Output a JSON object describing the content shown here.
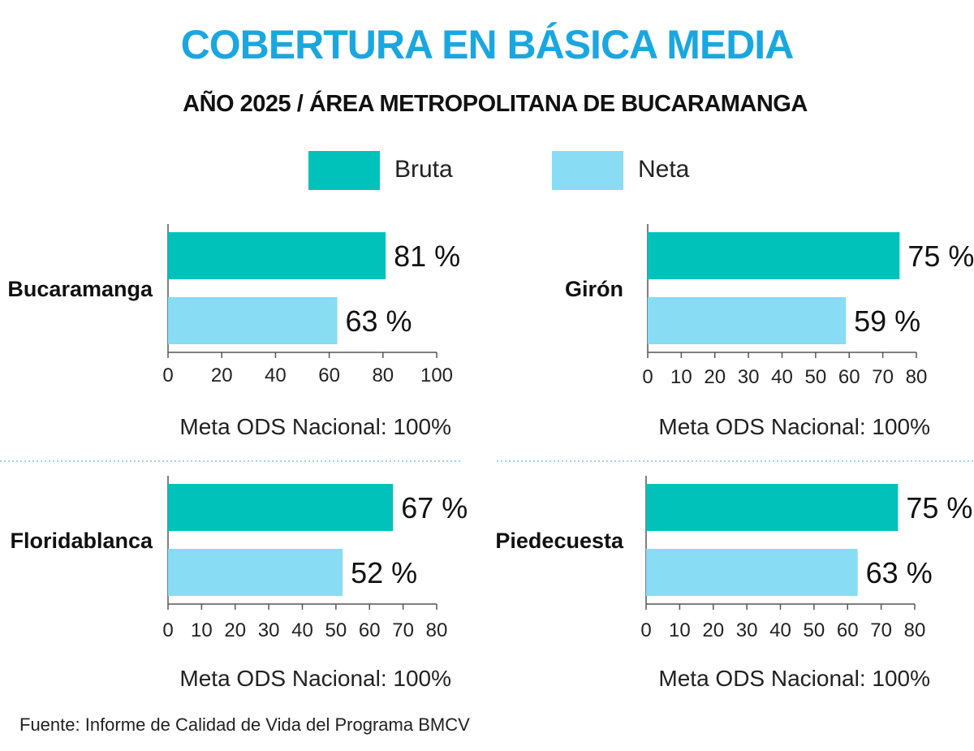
{
  "title": "COBERTURA EN BÁSICA MEDIA",
  "subtitle": "AÑO 2025 / ÁREA METROPOLITANA DE BUCARAMANGA",
  "colors": {
    "title": "#1aa7e0",
    "bruta": "#00c2bb",
    "neta": "#88dcf3",
    "axis": "#555555",
    "divider": "#7fc8e0"
  },
  "legend": [
    {
      "label": "Bruta",
      "color": "#00c2bb"
    },
    {
      "label": "Neta",
      "color": "#88dcf3"
    }
  ],
  "source": "Fuente: Informe de Calidad de Vida del Programa BMCV",
  "chart_data": [
    {
      "type": "bar",
      "orientation": "horizontal",
      "category": "Bucaramanga",
      "series": [
        {
          "name": "Bruta",
          "value": 81,
          "label": "81 %"
        },
        {
          "name": "Neta",
          "value": 63,
          "label": "63 %"
        }
      ],
      "xlim": [
        0,
        100
      ],
      "xticks": [
        0,
        20,
        40,
        60,
        80,
        100
      ],
      "note": "Meta ODS Nacional: 100%"
    },
    {
      "type": "bar",
      "orientation": "horizontal",
      "category": "Girón",
      "series": [
        {
          "name": "Bruta",
          "value": 75,
          "label": "75 %"
        },
        {
          "name": "Neta",
          "value": 59,
          "label": "59 %"
        }
      ],
      "xlim": [
        0,
        80
      ],
      "xticks": [
        0,
        10,
        20,
        30,
        40,
        50,
        60,
        70,
        80
      ],
      "note": "Meta ODS Nacional: 100%"
    },
    {
      "type": "bar",
      "orientation": "horizontal",
      "category": "Floridablanca",
      "series": [
        {
          "name": "Bruta",
          "value": 67,
          "label": "67 %"
        },
        {
          "name": "Neta",
          "value": 52,
          "label": "52 %"
        }
      ],
      "xlim": [
        0,
        80
      ],
      "xticks": [
        0,
        10,
        20,
        30,
        40,
        50,
        60,
        70,
        80
      ],
      "note": "Meta ODS Nacional: 100%"
    },
    {
      "type": "bar",
      "orientation": "horizontal",
      "category": "Piedecuesta",
      "series": [
        {
          "name": "Bruta",
          "value": 75,
          "label": "75 %"
        },
        {
          "name": "Neta",
          "value": 63,
          "label": "63 %"
        }
      ],
      "xlim": [
        0,
        80
      ],
      "xticks": [
        0,
        10,
        20,
        30,
        40,
        50,
        60,
        70,
        80
      ],
      "note": "Meta ODS Nacional: 100%"
    }
  ]
}
